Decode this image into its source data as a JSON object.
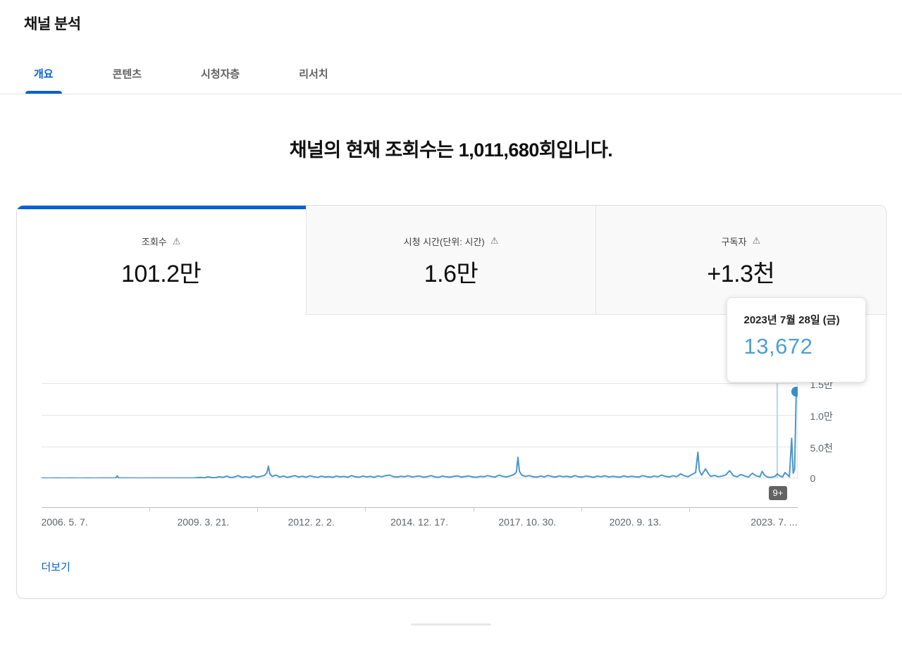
{
  "page": {
    "title": "채널 분석"
  },
  "nav": {
    "tabs": [
      {
        "label": "개요",
        "active": true
      },
      {
        "label": "콘텐츠",
        "active": false
      },
      {
        "label": "시청자층",
        "active": false
      },
      {
        "label": "리서치",
        "active": false
      }
    ]
  },
  "headline": {
    "prefix": "채널의 현재 조회수는 ",
    "number": "1,011,680",
    "suffix": "회입니다."
  },
  "metrics": [
    {
      "label": "조회수",
      "value": "101.2만",
      "warning_icon": "⚠",
      "active": true
    },
    {
      "label": "시청 시간(단위: 시간)",
      "value": "1.6만",
      "warning_icon": "⚠",
      "active": false
    },
    {
      "label": "구독자",
      "value": "+1.3천",
      "warning_icon": "⚠",
      "active": false
    }
  ],
  "tooltip": {
    "date": "2023년 7월 28일 (금)",
    "value": "13,672"
  },
  "chart_overflow_badge": "9+",
  "more_link_label": "더보기",
  "colors": {
    "accent": "#065fd4",
    "chart-line": "#4a97c9",
    "chart-dot": "#3b8ec5",
    "hover-line": "#b3d7ee",
    "tooltip-value": "#4d9fd6",
    "badge-bg": "#636363",
    "grid": "#e6e6e6"
  },
  "chart_data": {
    "type": "line",
    "x_ticks": [
      "2006. 5. 7.",
      "2009. 3. 21.",
      "2012. 2. 2.",
      "2014. 12. 17.",
      "2017. 10. 30.",
      "2020. 9. 13.",
      "2023. 7. ..."
    ],
    "y_ticks": [
      "1.5만",
      "1.0만",
      "5.0천",
      "0"
    ],
    "ylim": [
      0,
      15000
    ],
    "y_max": 15000,
    "legend": "none",
    "grid": true,
    "hover_x": 0.973,
    "highlight_point": {
      "date": "2023년 7월 28일 (금)",
      "value": 13672
    },
    "points": [
      [
        0.0,
        40
      ],
      [
        0.01,
        35
      ],
      [
        0.02,
        40
      ],
      [
        0.03,
        38
      ],
      [
        0.04,
        42
      ],
      [
        0.05,
        36
      ],
      [
        0.06,
        40
      ],
      [
        0.07,
        38
      ],
      [
        0.08,
        40
      ],
      [
        0.09,
        45
      ],
      [
        0.098,
        60
      ],
      [
        0.1,
        380
      ],
      [
        0.102,
        60
      ],
      [
        0.11,
        40
      ],
      [
        0.12,
        42
      ],
      [
        0.13,
        38
      ],
      [
        0.14,
        40
      ],
      [
        0.15,
        42
      ],
      [
        0.16,
        40
      ],
      [
        0.17,
        44
      ],
      [
        0.18,
        40
      ],
      [
        0.19,
        42
      ],
      [
        0.2,
        45
      ],
      [
        0.21,
        150
      ],
      [
        0.215,
        80
      ],
      [
        0.22,
        220
      ],
      [
        0.225,
        120
      ],
      [
        0.23,
        90
      ],
      [
        0.235,
        260
      ],
      [
        0.24,
        140
      ],
      [
        0.245,
        340
      ],
      [
        0.25,
        120
      ],
      [
        0.255,
        200
      ],
      [
        0.26,
        420
      ],
      [
        0.265,
        150
      ],
      [
        0.27,
        260
      ],
      [
        0.275,
        120
      ],
      [
        0.28,
        380
      ],
      [
        0.285,
        180
      ],
      [
        0.29,
        300
      ],
      [
        0.295,
        450
      ],
      [
        0.298,
        900
      ],
      [
        0.3,
        1900
      ],
      [
        0.302,
        700
      ],
      [
        0.305,
        300
      ],
      [
        0.31,
        500
      ],
      [
        0.315,
        200
      ],
      [
        0.32,
        350
      ],
      [
        0.325,
        150
      ],
      [
        0.33,
        280
      ],
      [
        0.335,
        420
      ],
      [
        0.34,
        200
      ],
      [
        0.345,
        320
      ],
      [
        0.35,
        180
      ],
      [
        0.355,
        400
      ],
      [
        0.36,
        250
      ],
      [
        0.365,
        150
      ],
      [
        0.37,
        330
      ],
      [
        0.375,
        200
      ],
      [
        0.38,
        280
      ],
      [
        0.385,
        160
      ],
      [
        0.39,
        360
      ],
      [
        0.395,
        220
      ],
      [
        0.4,
        300
      ],
      [
        0.405,
        170
      ],
      [
        0.41,
        420
      ],
      [
        0.415,
        250
      ],
      [
        0.42,
        180
      ],
      [
        0.425,
        350
      ],
      [
        0.43,
        220
      ],
      [
        0.435,
        300
      ],
      [
        0.44,
        160
      ],
      [
        0.445,
        380
      ],
      [
        0.45,
        240
      ],
      [
        0.455,
        420
      ],
      [
        0.46,
        500
      ],
      [
        0.465,
        280
      ],
      [
        0.47,
        180
      ],
      [
        0.475,
        320
      ],
      [
        0.48,
        240
      ],
      [
        0.485,
        400
      ],
      [
        0.49,
        200
      ],
      [
        0.495,
        300
      ],
      [
        0.5,
        350
      ],
      [
        0.505,
        180
      ],
      [
        0.51,
        260
      ],
      [
        0.515,
        420
      ],
      [
        0.52,
        220
      ],
      [
        0.525,
        160
      ],
      [
        0.53,
        340
      ],
      [
        0.535,
        250
      ],
      [
        0.54,
        180
      ],
      [
        0.545,
        300
      ],
      [
        0.55,
        380
      ],
      [
        0.555,
        200
      ],
      [
        0.56,
        280
      ],
      [
        0.565,
        350
      ],
      [
        0.57,
        220
      ],
      [
        0.575,
        160
      ],
      [
        0.58,
        300
      ],
      [
        0.585,
        240
      ],
      [
        0.59,
        420
      ],
      [
        0.595,
        280
      ],
      [
        0.6,
        200
      ],
      [
        0.605,
        500
      ],
      [
        0.61,
        300
      ],
      [
        0.615,
        220
      ],
      [
        0.62,
        400
      ],
      [
        0.625,
        600
      ],
      [
        0.628,
        1000
      ],
      [
        0.63,
        3300
      ],
      [
        0.632,
        1100
      ],
      [
        0.635,
        500
      ],
      [
        0.64,
        300
      ],
      [
        0.645,
        420
      ],
      [
        0.65,
        250
      ],
      [
        0.655,
        180
      ],
      [
        0.66,
        350
      ],
      [
        0.665,
        220
      ],
      [
        0.67,
        450
      ],
      [
        0.675,
        280
      ],
      [
        0.68,
        200
      ],
      [
        0.685,
        380
      ],
      [
        0.69,
        240
      ],
      [
        0.695,
        320
      ],
      [
        0.7,
        180
      ],
      [
        0.705,
        420
      ],
      [
        0.71,
        260
      ],
      [
        0.715,
        200
      ],
      [
        0.72,
        360
      ],
      [
        0.725,
        280
      ],
      [
        0.73,
        160
      ],
      [
        0.735,
        340
      ],
      [
        0.74,
        240
      ],
      [
        0.745,
        400
      ],
      [
        0.75,
        200
      ],
      [
        0.755,
        300
      ],
      [
        0.76,
        250
      ],
      [
        0.765,
        180
      ],
      [
        0.77,
        380
      ],
      [
        0.775,
        220
      ],
      [
        0.78,
        320
      ],
      [
        0.785,
        260
      ],
      [
        0.79,
        200
      ],
      [
        0.795,
        420
      ],
      [
        0.8,
        280
      ],
      [
        0.805,
        180
      ],
      [
        0.81,
        350
      ],
      [
        0.815,
        240
      ],
      [
        0.82,
        500
      ],
      [
        0.825,
        300
      ],
      [
        0.83,
        220
      ],
      [
        0.835,
        400
      ],
      [
        0.84,
        260
      ],
      [
        0.845,
        700
      ],
      [
        0.85,
        400
      ],
      [
        0.855,
        250
      ],
      [
        0.86,
        600
      ],
      [
        0.865,
        900
      ],
      [
        0.868,
        4100
      ],
      [
        0.87,
        1200
      ],
      [
        0.873,
        500
      ],
      [
        0.878,
        1500
      ],
      [
        0.882,
        700
      ],
      [
        0.885,
        300
      ],
      [
        0.89,
        450
      ],
      [
        0.895,
        250
      ],
      [
        0.9,
        350
      ],
      [
        0.905,
        550
      ],
      [
        0.91,
        1200
      ],
      [
        0.915,
        400
      ],
      [
        0.92,
        250
      ],
      [
        0.925,
        600
      ],
      [
        0.93,
        350
      ],
      [
        0.935,
        200
      ],
      [
        0.94,
        800
      ],
      [
        0.945,
        400
      ],
      [
        0.95,
        250
      ],
      [
        0.953,
        1100
      ],
      [
        0.956,
        500
      ],
      [
        0.96,
        200
      ],
      [
        0.965,
        150
      ],
      [
        0.97,
        300
      ],
      [
        0.973,
        700
      ],
      [
        0.976,
        400
      ],
      [
        0.98,
        200
      ],
      [
        0.983,
        900
      ],
      [
        0.986,
        600
      ],
      [
        0.989,
        250
      ],
      [
        0.992,
        6300
      ],
      [
        0.994,
        800
      ],
      [
        0.996,
        1500
      ],
      [
        0.998,
        13672
      ]
    ]
  }
}
